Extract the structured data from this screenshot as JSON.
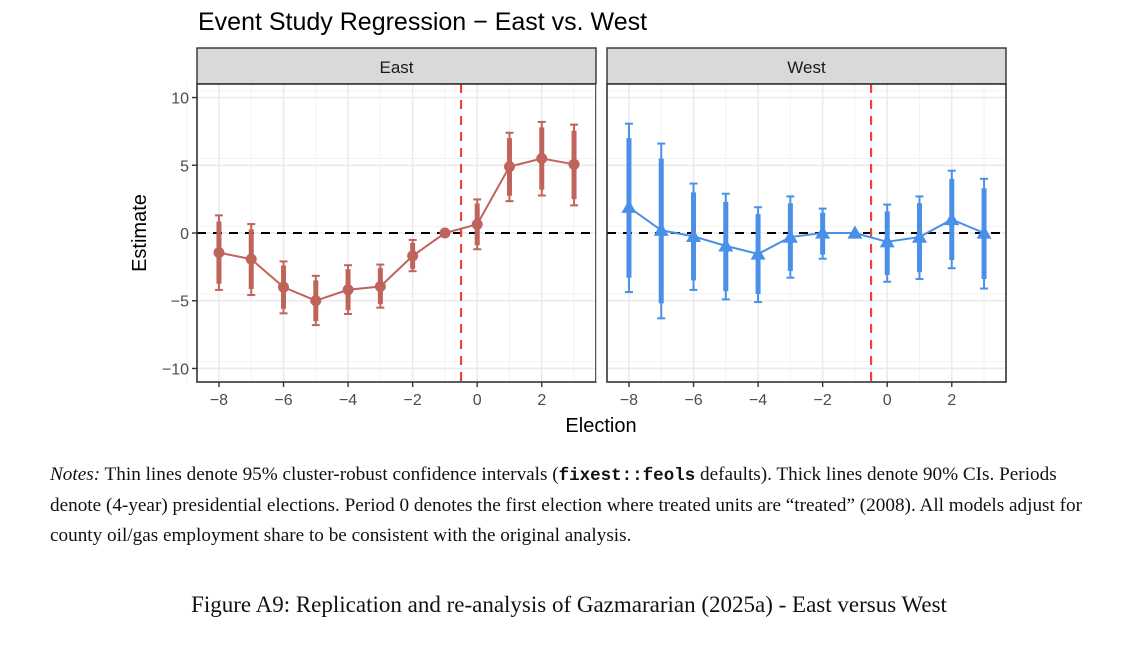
{
  "chart_data": {
    "type": "line",
    "title": "Event Study Regression − East vs. West",
    "xlabel": "Election",
    "ylabel": "Estimate",
    "xlim": [
      -8.68,
      3.68
    ],
    "ylim": [
      -11,
      11
    ],
    "x_ticks": [
      -8,
      -6,
      -4,
      -2,
      0,
      2
    ],
    "x_tick_labels": [
      "−8",
      "−6",
      "−4",
      "−2",
      "0",
      "2"
    ],
    "y_ticks": [
      10,
      5,
      0,
      -5,
      -10
    ],
    "y_tick_labels": [
      "10",
      "5",
      "0",
      "−5",
      "−10"
    ],
    "grid": true,
    "reference_hline": 0,
    "treatment_vline": -0.5,
    "hline_color": "#000000",
    "vline_color": "#E8453C",
    "panels": [
      {
        "name": "East",
        "marker": "circle",
        "color": "#C0635A",
        "x": [
          -8,
          -7,
          -6,
          -5,
          -4,
          -3,
          -2,
          -1,
          0,
          1,
          2,
          3
        ],
        "estimate": [
          -1.45,
          -1.93,
          -4.0,
          -5.0,
          -4.19,
          -3.95,
          -1.69,
          0.0,
          0.64,
          4.9,
          5.5,
          5.07
        ],
        "ci95_low": [
          -4.2,
          -4.58,
          -5.93,
          -6.8,
          -5.98,
          -5.51,
          -2.82,
          0.0,
          -1.2,
          2.35,
          2.77,
          2.04
        ],
        "ci95_high": [
          1.3,
          0.66,
          -2.1,
          -3.16,
          -2.38,
          -2.33,
          -0.51,
          0.0,
          2.48,
          7.4,
          8.2,
          8.0
        ],
        "ci90_low": [
          -3.75,
          -4.13,
          -5.6,
          -6.5,
          -5.7,
          -5.25,
          -2.64,
          0.0,
          -0.9,
          2.75,
          3.2,
          2.5
        ],
        "ci90_high": [
          0.85,
          0.27,
          -2.4,
          -3.5,
          -2.67,
          -2.6,
          -0.74,
          0.0,
          2.18,
          7.0,
          7.8,
          7.55
        ]
      },
      {
        "name": "West",
        "marker": "triangle",
        "color": "#4A90E8",
        "x": [
          -8,
          -7,
          -6,
          -5,
          -4,
          -3,
          -2,
          -1,
          0,
          1,
          2,
          3
        ],
        "estimate": [
          1.9,
          0.2,
          -0.25,
          -0.95,
          -1.55,
          -0.3,
          0.0,
          0.0,
          -0.65,
          -0.3,
          1.0,
          0.0
        ],
        "ci95_low": [
          -4.36,
          -6.3,
          -4.2,
          -4.9,
          -5.1,
          -3.3,
          -1.9,
          0.0,
          -3.6,
          -3.4,
          -2.6,
          -4.1
        ],
        "ci95_high": [
          8.07,
          6.6,
          3.65,
          2.9,
          1.9,
          2.7,
          1.8,
          0.0,
          2.1,
          2.7,
          4.6,
          4.0
        ],
        "ci90_low": [
          -3.3,
          -5.2,
          -3.5,
          -4.3,
          -4.5,
          -2.8,
          -1.6,
          0.0,
          -3.1,
          -2.9,
          -2.0,
          -3.4
        ],
        "ci90_high": [
          7.0,
          5.5,
          3.0,
          2.3,
          1.4,
          2.2,
          1.5,
          0.0,
          1.6,
          2.2,
          4.0,
          3.3
        ]
      }
    ]
  },
  "notes": {
    "label": "Notes:",
    "part1": " Thin lines denote 95% cluster-robust confidence intervals (",
    "code": "fixest::feols",
    "part2": " defaults). Thick lines denote 90% CIs. Periods denote (4-year) presidential elections. Period 0 denotes the first election where treated units are “treated” (2008). All models adjust for county oil/gas employment share to be consistent with the original analysis."
  },
  "caption": "Figure A9: Replication and re-analysis of Gazmararian (2025a) - East versus West"
}
